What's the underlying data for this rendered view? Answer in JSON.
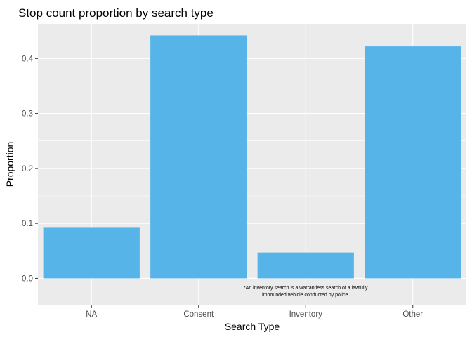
{
  "chart_data": {
    "type": "bar",
    "title": "Stop count proportion by search type",
    "xlabel": "Search Type",
    "ylabel": "Proportion",
    "categories": [
      "NA",
      "Consent",
      "Inventory",
      "Other"
    ],
    "values": [
      0.092,
      0.442,
      0.047,
      0.422
    ],
    "ylim": [
      -0.048,
      0.463
    ],
    "yticks": [
      0.0,
      0.1,
      0.2,
      0.3,
      0.4
    ],
    "ytick_labels": [
      "0.0",
      "0.1",
      "0.2",
      "0.3",
      "0.4"
    ],
    "grid": true,
    "legend": "none",
    "annotation": {
      "line1": "*An inventory search is a warrantless search of a lawfully",
      "line2": "impounded vehicle conducted by police.",
      "x_anchor": "Inventory",
      "y": -0.025
    },
    "colors": {
      "bar": "#56B4E9",
      "panel": "#EBEBEB",
      "grid": "#FFFFFF"
    }
  }
}
